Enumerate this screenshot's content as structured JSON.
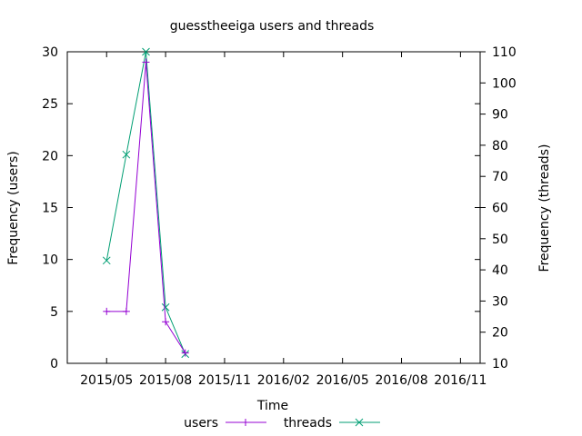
{
  "chart_data": {
    "type": "line",
    "title": "guesstheeiga users and threads",
    "xlabel": "Time",
    "ylabel_left": "Frequency (users)",
    "ylabel_right": "Frequency (threads)",
    "x_range": [
      "2015-03-01",
      "2016-12-01"
    ],
    "x_ticks": [
      {
        "date": "2015-05-01",
        "label": "2015/05"
      },
      {
        "date": "2015-08-01",
        "label": "2015/08"
      },
      {
        "date": "2015-11-01",
        "label": "2015/11"
      },
      {
        "date": "2016-02-01",
        "label": "2016/02"
      },
      {
        "date": "2016-05-01",
        "label": "2016/05"
      },
      {
        "date": "2016-08-01",
        "label": "2016/08"
      },
      {
        "date": "2016-11-01",
        "label": "2016/11"
      }
    ],
    "y_left": {
      "range": [
        0,
        30
      ],
      "ticks": [
        0,
        5,
        10,
        15,
        20,
        25,
        30
      ]
    },
    "y_right": {
      "range": [
        10,
        110
      ],
      "ticks": [
        10,
        20,
        30,
        40,
        50,
        60,
        70,
        80,
        90,
        100,
        110
      ]
    },
    "grid": false,
    "legend_position": "bottom-center",
    "series": [
      {
        "name": "users",
        "axis": "left",
        "color": "#9400d3",
        "marker": "plus",
        "points": [
          {
            "x": "2015-05-01",
            "y": 5
          },
          {
            "x": "2015-06-01",
            "y": 5
          },
          {
            "x": "2015-07-01",
            "y": 29
          },
          {
            "x": "2015-08-01",
            "y": 4
          },
          {
            "x": "2015-09-01",
            "y": 1
          }
        ]
      },
      {
        "name": "threads",
        "axis": "right",
        "color": "#009e73",
        "marker": "cross",
        "points": [
          {
            "x": "2015-05-01",
            "y": 43
          },
          {
            "x": "2015-06-01",
            "y": 77
          },
          {
            "x": "2015-07-01",
            "y": 110
          },
          {
            "x": "2015-08-01",
            "y": 28
          },
          {
            "x": "2015-09-01",
            "y": 13
          }
        ]
      }
    ]
  }
}
